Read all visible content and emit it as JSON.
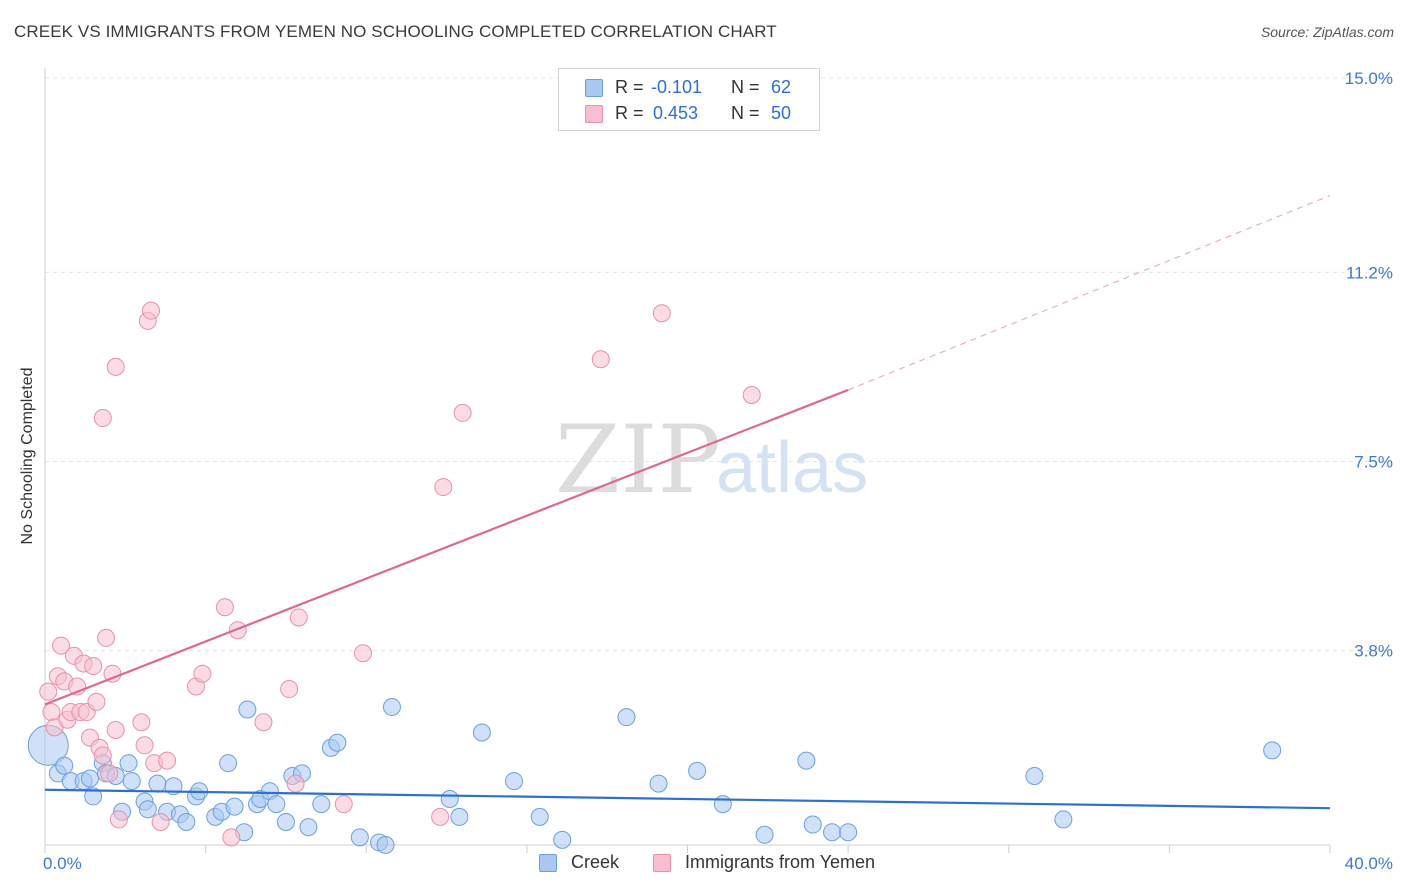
{
  "title": "CREEK VS IMMIGRANTS FROM YEMEN NO SCHOOLING COMPLETED CORRELATION CHART",
  "source": "Source: ZipAtlas.com",
  "watermark": {
    "zip": "ZIP",
    "atlas": "atlas"
  },
  "legend_top": {
    "rows": [
      {
        "r_label": "R =",
        "r_value": "-0.101",
        "n_label": "N =",
        "n_value": "62",
        "color": "#aac8f0",
        "border": "#6a9fe0"
      },
      {
        "r_label": "R =",
        "r_value": "0.453",
        "n_label": "N =",
        "n_value": "50",
        "color": "#f7bfd0",
        "border": "#e890aa"
      }
    ]
  },
  "legend_bottom": [
    {
      "label": "Creek",
      "color": "#aac8f0",
      "border": "#6a9fe0"
    },
    {
      "label": "Immigrants from Yemen",
      "color": "#f7bfd0",
      "border": "#e890aa"
    }
  ],
  "chart_data": {
    "type": "scatter",
    "title": "CREEK VS IMMIGRANTS FROM YEMEN NO SCHOOLING COMPLETED CORRELATION CHART",
    "xlabel": "",
    "ylabel": "No Schooling Completed",
    "xlim": [
      0,
      40
    ],
    "ylim": [
      0,
      15.0
    ],
    "x_tick_labels": [
      "0.0%",
      "40.0%"
    ],
    "y_ticks": [
      3.8,
      7.5,
      11.2,
      15.0
    ],
    "y_tick_labels": [
      "3.8%",
      "7.5%",
      "11.2%",
      "15.0%"
    ],
    "grid": true,
    "legend_position": "top-center",
    "series": [
      {
        "name": "Creek",
        "color": "#6a9fe0",
        "fill": "#aac8f0",
        "trend": {
          "x0": 0,
          "y0": 1.08,
          "x1": 40,
          "y1": 0.72,
          "color": "#2f6fd0"
        },
        "points": [
          [
            0.1,
            1.95
          ],
          [
            0.4,
            1.4
          ],
          [
            0.6,
            1.55
          ],
          [
            0.8,
            1.25
          ],
          [
            1.2,
            1.25
          ],
          [
            1.4,
            1.3
          ],
          [
            1.5,
            0.95
          ],
          [
            1.8,
            1.6
          ],
          [
            1.9,
            1.4
          ],
          [
            2.2,
            1.35
          ],
          [
            2.4,
            0.65
          ],
          [
            2.6,
            1.6
          ],
          [
            2.7,
            1.25
          ],
          [
            3.1,
            0.85
          ],
          [
            3.2,
            0.7
          ],
          [
            3.5,
            1.2
          ],
          [
            3.8,
            0.65
          ],
          [
            4.0,
            1.15
          ],
          [
            4.2,
            0.6
          ],
          [
            4.4,
            0.45
          ],
          [
            4.7,
            0.95
          ],
          [
            4.8,
            1.05
          ],
          [
            5.3,
            0.55
          ],
          [
            5.5,
            0.65
          ],
          [
            5.7,
            1.6
          ],
          [
            5.9,
            0.75
          ],
          [
            6.2,
            0.25
          ],
          [
            6.3,
            2.65
          ],
          [
            6.6,
            0.8
          ],
          [
            6.7,
            0.9
          ],
          [
            7.0,
            1.05
          ],
          [
            7.2,
            0.8
          ],
          [
            7.5,
            0.45
          ],
          [
            7.7,
            1.35
          ],
          [
            8.0,
            1.4
          ],
          [
            8.2,
            0.35
          ],
          [
            8.6,
            0.8
          ],
          [
            8.9,
            1.9
          ],
          [
            9.1,
            2.0
          ],
          [
            9.8,
            0.15
          ],
          [
            10.4,
            0.05
          ],
          [
            10.6,
            0.0
          ],
          [
            10.8,
            2.7
          ],
          [
            12.6,
            0.9
          ],
          [
            12.9,
            0.55
          ],
          [
            13.6,
            2.2
          ],
          [
            14.6,
            1.25
          ],
          [
            15.4,
            0.55
          ],
          [
            16.1,
            0.1
          ],
          [
            18.1,
            2.5
          ],
          [
            19.1,
            1.2
          ],
          [
            20.3,
            1.45
          ],
          [
            21.1,
            0.8
          ],
          [
            22.4,
            0.2
          ],
          [
            23.7,
            1.65
          ],
          [
            23.9,
            0.4
          ],
          [
            24.5,
            0.25
          ],
          [
            25.0,
            0.25
          ],
          [
            30.8,
            1.35
          ],
          [
            31.7,
            0.5
          ],
          [
            38.2,
            1.85
          ]
        ]
      },
      {
        "name": "Immigrants from Yemen",
        "color": "#e890aa",
        "fill": "#f7bfd0",
        "trend": {
          "x0": 0,
          "y0": 2.75,
          "x1": 25,
          "y1": 8.9,
          "color": "#e06890"
        },
        "trend_dashed": {
          "x0": 25,
          "y0": 8.9,
          "x1": 40,
          "y1": 12.7
        },
        "points": [
          [
            0.1,
            3.0
          ],
          [
            0.2,
            2.6
          ],
          [
            0.3,
            2.3
          ],
          [
            0.4,
            3.3
          ],
          [
            0.5,
            3.9
          ],
          [
            0.6,
            3.2
          ],
          [
            0.7,
            2.45
          ],
          [
            0.8,
            2.6
          ],
          [
            0.9,
            3.7
          ],
          [
            1.0,
            3.1
          ],
          [
            1.1,
            2.6
          ],
          [
            1.2,
            3.55
          ],
          [
            1.3,
            2.6
          ],
          [
            1.4,
            2.1
          ],
          [
            1.5,
            3.5
          ],
          [
            1.6,
            2.8
          ],
          [
            1.7,
            1.9
          ],
          [
            1.8,
            1.75
          ],
          [
            1.9,
            4.05
          ],
          [
            2.0,
            1.4
          ],
          [
            2.1,
            3.35
          ],
          [
            2.2,
            2.25
          ],
          [
            2.3,
            0.5
          ],
          [
            1.8,
            8.35
          ],
          [
            2.2,
            9.35
          ],
          [
            3.0,
            2.4
          ],
          [
            3.1,
            1.95
          ],
          [
            3.2,
            10.25
          ],
          [
            3.3,
            10.45
          ],
          [
            3.4,
            1.6
          ],
          [
            3.6,
            0.45
          ],
          [
            3.8,
            1.65
          ],
          [
            4.7,
            3.1
          ],
          [
            4.9,
            3.35
          ],
          [
            5.6,
            4.65
          ],
          [
            5.8,
            0.15
          ],
          [
            6.0,
            4.2
          ],
          [
            6.8,
            2.4
          ],
          [
            7.6,
            3.05
          ],
          [
            7.8,
            1.2
          ],
          [
            7.9,
            4.45
          ],
          [
            9.3,
            0.8
          ],
          [
            9.9,
            3.75
          ],
          [
            12.3,
            0.55
          ],
          [
            12.4,
            7.0
          ],
          [
            13.0,
            8.45
          ],
          [
            17.3,
            9.5
          ],
          [
            19.2,
            10.4
          ],
          [
            22.0,
            8.8
          ]
        ]
      }
    ]
  }
}
